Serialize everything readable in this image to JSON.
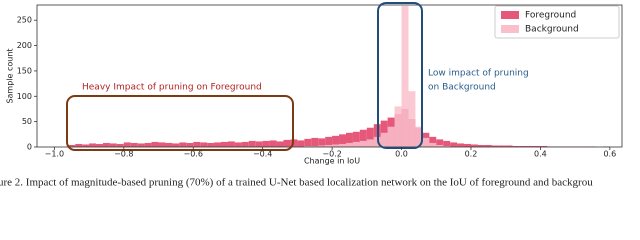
{
  "chart_data": {
    "type": "histogram",
    "xlabel": "Change in IoU",
    "ylabel": "Sample count",
    "bins": [
      -0.96,
      -0.94,
      -0.92,
      -0.9,
      -0.88,
      -0.86,
      -0.84,
      -0.82,
      -0.8,
      -0.78,
      -0.76,
      -0.74,
      -0.72,
      -0.7,
      -0.68,
      -0.66,
      -0.64,
      -0.62,
      -0.6,
      -0.58,
      -0.56,
      -0.54,
      -0.52,
      -0.5,
      -0.48,
      -0.46,
      -0.44,
      -0.42,
      -0.4,
      -0.38,
      -0.36,
      -0.34,
      -0.32,
      -0.3,
      -0.28,
      -0.26,
      -0.24,
      -0.22,
      -0.2,
      -0.18,
      -0.16,
      -0.14,
      -0.12,
      -0.1,
      -0.08,
      -0.06,
      -0.04,
      -0.02,
      0,
      0.02,
      0.04,
      0.06,
      0.08,
      0.1,
      0.12,
      0.14,
      0.16,
      0.18,
      0.2,
      0.22,
      0.24,
      0.26,
      0.28,
      0.3,
      0.32,
      0.34,
      0.36,
      0.38,
      0.4,
      0.42,
      0.44,
      0.46,
      0.48,
      0.5,
      0.52,
      0.54,
      0.56,
      0.58,
      0.6
    ],
    "series": [
      {
        "name": "Foreground",
        "color": "#e6587a",
        "values": [
          4,
          6,
          5,
          7,
          6,
          8,
          7,
          6,
          9,
          8,
          7,
          8,
          10,
          9,
          8,
          7,
          9,
          8,
          10,
          9,
          8,
          9,
          10,
          11,
          9,
          10,
          12,
          11,
          12,
          13,
          11,
          14,
          15,
          13,
          16,
          18,
          17,
          20,
          22,
          25,
          28,
          30,
          34,
          38,
          45,
          52,
          58,
          65,
          75,
          55,
          38,
          28,
          20,
          15,
          12,
          9,
          7,
          6,
          5,
          4,
          4,
          3,
          3,
          3,
          2,
          2,
          2,
          2,
          2,
          1,
          1,
          1,
          1,
          1,
          1,
          1,
          0,
          1
        ]
      },
      {
        "name": "Background",
        "color": "#f9bfcb",
        "values": [
          0,
          0,
          0,
          0,
          0,
          0,
          0,
          0,
          0,
          0,
          0,
          0,
          0,
          0,
          0,
          0,
          0,
          0,
          0,
          0,
          0,
          0,
          0,
          0,
          0,
          0,
          0,
          0,
          0,
          0,
          0,
          1,
          1,
          1,
          2,
          2,
          3,
          4,
          5,
          6,
          8,
          10,
          12,
          15,
          20,
          28,
          40,
          80,
          278,
          110,
          40,
          18,
          8,
          4,
          2,
          1,
          1,
          0,
          0,
          0,
          0,
          0,
          0,
          0,
          0,
          0,
          0,
          0,
          0,
          0,
          0,
          0,
          0,
          0,
          0,
          0,
          0,
          0
        ]
      }
    ],
    "xlim": [
      -1.05,
      0.635
    ],
    "ylim": [
      0,
      280
    ],
    "xticks": [
      {
        "value": -1.0,
        "label": "−1.0"
      },
      {
        "value": -0.8,
        "label": "−0.8"
      },
      {
        "value": -0.6,
        "label": "−0.6"
      },
      {
        "value": -0.4,
        "label": "−0.4"
      },
      {
        "value": -0.2,
        "label": "−0.2"
      },
      {
        "value": 0,
        "label": "0.0"
      },
      0.2,
      0.4,
      0.6
    ],
    "yticks": [
      0,
      50,
      100,
      150,
      200,
      250
    ],
    "legend": "upper right",
    "annotations": [
      "Heavy Impact of pruning on Foreground",
      "Low impact of pruning",
      "on Background"
    ],
    "caption": "ure 2. Impact of magnitude-based pruning (70%) of a trained U-Net based localization network on the IoU of foreground and backgrou"
  }
}
